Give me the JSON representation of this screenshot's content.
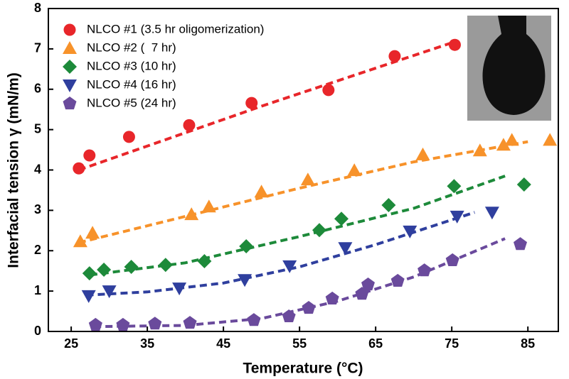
{
  "chart_data": {
    "type": "scatter",
    "x_label": "Temperature (°C)",
    "y_label": "Interfacial tension γ (mN/m)",
    "xlim": [
      22,
      89
    ],
    "xticks": [
      25,
      35,
      45,
      55,
      65,
      75,
      85
    ],
    "ylim": [
      0,
      8
    ],
    "yticks": [
      0,
      1,
      2,
      3,
      4,
      5,
      6,
      7,
      8
    ],
    "legend": "upper-left",
    "series": [
      {
        "name": "NLCO #1 (3.5 hr oligomerization)",
        "color": "#e8262a",
        "marker": "circle",
        "x": [
          26.0,
          27.4,
          32.6,
          40.5,
          48.7,
          58.8,
          67.5,
          75.4
        ],
        "values": [
          4.04,
          4.36,
          4.82,
          5.11,
          5.66,
          5.98,
          6.82,
          7.1
        ],
        "fit": {
          "x": [
            26,
            50,
            75
          ],
          "values": [
            4.0,
            5.58,
            7.15
          ]
        }
      },
      {
        "name": "NLCO #2 (  7 hr)",
        "color": "#f7922a",
        "marker": "triangle-up",
        "x": [
          26.2,
          27.8,
          40.8,
          43.1,
          50.0,
          56.1,
          62.2,
          71.2,
          78.7,
          81.8,
          82.9,
          87.9
        ],
        "values": [
          2.23,
          2.44,
          2.9,
          3.09,
          3.46,
          3.76,
          3.99,
          4.38,
          4.48,
          4.62,
          4.74,
          4.74
        ],
        "fit": {
          "x": [
            26,
            40,
            55,
            70,
            85
          ],
          "values": [
            2.2,
            2.85,
            3.55,
            4.2,
            4.7
          ]
        }
      },
      {
        "name": "NLCO #3 (10 hr)",
        "color": "#1d8a3a",
        "marker": "diamond",
        "x": [
          27.4,
          29.3,
          32.9,
          37.4,
          42.5,
          48.0,
          57.6,
          60.5,
          66.7,
          75.3,
          84.5
        ],
        "values": [
          1.44,
          1.53,
          1.6,
          1.65,
          1.74,
          2.11,
          2.51,
          2.79,
          3.13,
          3.6,
          3.64
        ],
        "fit": {
          "x": [
            27.5,
            40,
            55,
            70,
            82
          ],
          "values": [
            1.4,
            1.7,
            2.35,
            3.05,
            3.85
          ]
        }
      },
      {
        "name": "NLCO #4 (16 hr)",
        "color": "#2f3f9e",
        "marker": "triangle-down",
        "x": [
          27.3,
          30.0,
          39.2,
          47.8,
          53.7,
          61.0,
          69.5,
          75.7,
          80.3
        ],
        "values": [
          0.88,
          1.0,
          1.07,
          1.28,
          1.62,
          2.07,
          2.48,
          2.85,
          2.95
        ],
        "fit": {
          "x": [
            27,
            35,
            45,
            55,
            65,
            78
          ],
          "values": [
            0.9,
            0.98,
            1.2,
            1.6,
            2.15,
            2.95
          ]
        }
      },
      {
        "name": "NLCO #5 (24 hr)",
        "color": "#6a4a9c",
        "marker": "pentagon",
        "x": [
          28.2,
          31.8,
          36.0,
          40.6,
          49.0,
          53.6,
          56.2,
          59.3,
          63.2,
          64.0,
          67.9,
          71.4,
          75.1,
          84.0
        ],
        "values": [
          0.16,
          0.16,
          0.19,
          0.21,
          0.28,
          0.37,
          0.58,
          0.81,
          0.93,
          1.16,
          1.25,
          1.51,
          1.76,
          2.16
        ],
        "fit": {
          "x": [
            28,
            40,
            50,
            60,
            70,
            82
          ],
          "values": [
            0.12,
            0.15,
            0.32,
            0.75,
            1.35,
            2.3
          ]
        }
      }
    ]
  }
}
